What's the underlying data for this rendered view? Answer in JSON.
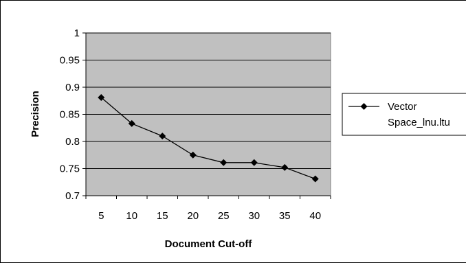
{
  "chart_data": {
    "type": "line",
    "title": "",
    "xlabel": "Document Cut-off",
    "ylabel": "Precision",
    "x": [
      "5",
      "10",
      "15",
      "20",
      "25",
      "30",
      "35",
      "40"
    ],
    "series": [
      {
        "name_lines": [
          "Vector",
          "Space_lnu.ltu"
        ],
        "values": [
          0.881,
          0.833,
          0.81,
          0.775,
          0.761,
          0.761,
          0.752,
          0.731
        ]
      }
    ],
    "ylim": [
      0.7,
      1.0
    ],
    "yticks": [
      "0.7",
      "0.75",
      "0.8",
      "0.85",
      "0.9",
      "0.95",
      "1"
    ],
    "grid": true,
    "legend_position": "right",
    "colors": {
      "plot_background": "#c0c0c0",
      "line": "#000000",
      "marker": "#000000",
      "gridline": "#000000"
    },
    "marker": "diamond"
  }
}
